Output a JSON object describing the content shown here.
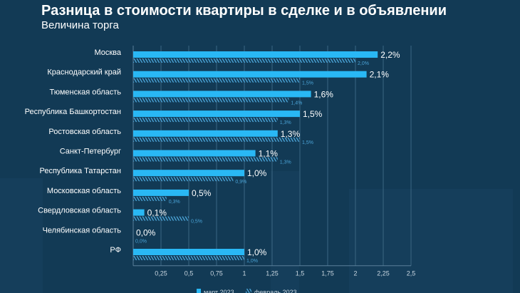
{
  "title": "Разница в стоимости квартиры в сделке и в объявлении",
  "subtitle": "Величина торга",
  "colors": {
    "background": "#123a55",
    "march": "#29b8f5",
    "february": "#4aa3d6",
    "text": "#ffffff"
  },
  "chart_data": {
    "type": "bar",
    "orientation": "horizontal",
    "categories": [
      "Москва",
      "Краснодарский край",
      "Тюменская область",
      "Республика Башкортостан",
      "Ростовская область",
      "Санкт-Петербург",
      "Республика Татарстан",
      "Московская область",
      "Свердловская область",
      "Челябинская область",
      "РФ"
    ],
    "series": [
      {
        "name": "март 2023",
        "values": [
          2.2,
          2.1,
          1.6,
          1.5,
          1.3,
          1.1,
          1.0,
          0.5,
          0.1,
          0.0,
          1.0
        ],
        "labels": [
          "2,2%",
          "2,1%",
          "1,6%",
          "1,5%",
          "1,3%",
          "1,1%",
          "1,0%",
          "0,5%",
          "0,1%",
          "0,0%",
          "1,0%"
        ]
      },
      {
        "name": "февраль 2023",
        "values": [
          2.0,
          1.5,
          1.4,
          1.3,
          1.5,
          1.3,
          0.9,
          0.3,
          0.5,
          0.0,
          1.0
        ],
        "labels": [
          "2,0%",
          "1,5%",
          "1,4%",
          "1,3%",
          "1,5%",
          "1,3%",
          "0,9%",
          "0,3%",
          "0,5%",
          "0,0%",
          "1,0%"
        ]
      }
    ],
    "xlim": [
      0,
      2.5
    ],
    "xticks": [
      "0,25",
      "0,5",
      "0,75",
      "1",
      "1,25",
      "1,5",
      "1,75",
      "2",
      "2,25",
      "2,5"
    ],
    "grid": true,
    "legend": "bottom"
  }
}
